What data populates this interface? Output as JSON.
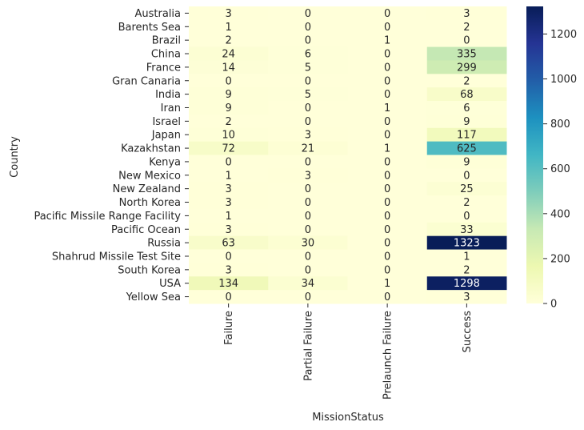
{
  "chart_data": {
    "type": "heatmap",
    "title": "",
    "xlabel": "MissionStatus",
    "ylabel": "Country",
    "x_categories": [
      "Failure",
      "Partial Failure",
      "Prelaunch Failure",
      "Success"
    ],
    "y_categories": [
      "Australia",
      "Barents Sea",
      "Brazil",
      "China",
      "France",
      "Gran Canaria",
      "India",
      "Iran",
      "Israel",
      "Japan",
      "Kazakhstan",
      "Kenya",
      "New Mexico",
      "New Zealand",
      "North Korea",
      "Pacific Missile Range Facility",
      "Pacific Ocean",
      "Russia",
      "Shahrud Missile Test Site",
      "South Korea",
      "USA",
      "Yellow Sea"
    ],
    "values": [
      [
        3,
        0,
        0,
        3
      ],
      [
        1,
        0,
        0,
        2
      ],
      [
        2,
        0,
        1,
        0
      ],
      [
        24,
        6,
        0,
        335
      ],
      [
        14,
        5,
        0,
        299
      ],
      [
        0,
        0,
        0,
        2
      ],
      [
        9,
        5,
        0,
        68
      ],
      [
        9,
        0,
        1,
        6
      ],
      [
        2,
        0,
        0,
        9
      ],
      [
        10,
        3,
        0,
        117
      ],
      [
        72,
        21,
        1,
        625
      ],
      [
        0,
        0,
        0,
        9
      ],
      [
        1,
        3,
        0,
        0
      ],
      [
        3,
        0,
        0,
        25
      ],
      [
        3,
        0,
        0,
        2
      ],
      [
        1,
        0,
        0,
        0
      ],
      [
        3,
        0,
        0,
        33
      ],
      [
        63,
        30,
        0,
        1323
      ],
      [
        0,
        0,
        0,
        1
      ],
      [
        3,
        0,
        0,
        2
      ],
      [
        134,
        34,
        1,
        1298
      ],
      [
        0,
        0,
        0,
        3
      ]
    ],
    "colormap": "YlGnBu",
    "vmin": 0,
    "vmax": 1323,
    "colorbar_ticks": [
      0,
      200,
      400,
      600,
      800,
      1000,
      1200
    ],
    "annotations": true,
    "grid": false
  }
}
